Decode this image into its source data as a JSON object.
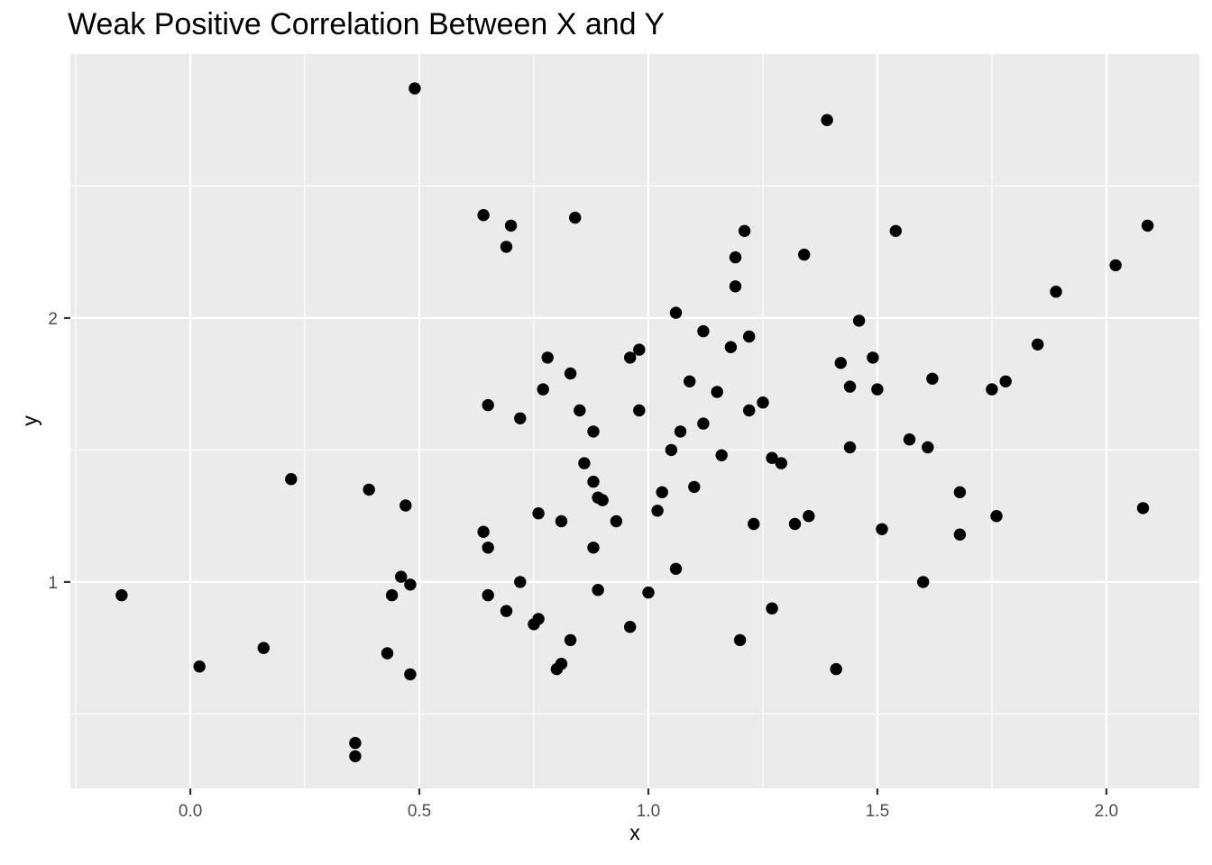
{
  "chart_data": {
    "type": "scatter",
    "title": "Weak Positive Correlation Between X and Y",
    "xlabel": "x",
    "ylabel": "y",
    "xlim": [
      -0.262,
      2.203
    ],
    "ylim": [
      0.218,
      3.0
    ],
    "grid": "on",
    "legend": "none",
    "x_ticks": [
      {
        "value": 0.0,
        "label": "0.0"
      },
      {
        "value": 0.5,
        "label": "0.5"
      },
      {
        "value": 1.0,
        "label": "1.0"
      },
      {
        "value": 1.5,
        "label": "1.5"
      },
      {
        "value": 2.0,
        "label": "2.0"
      }
    ],
    "y_ticks": [
      {
        "value": 1,
        "label": "1"
      },
      {
        "value": 2,
        "label": "2"
      }
    ],
    "x_minor": [
      -0.25,
      0.25,
      0.75,
      1.25,
      1.75
    ],
    "y_minor": [
      0.5,
      1.5,
      2.5
    ],
    "colors": {
      "panel_bg": "#EBEBEB",
      "grid": "#FFFFFF",
      "point": "#000000",
      "tick_label": "#4D4D4D",
      "tick_mark": "#333333",
      "title": "#000000"
    },
    "point_radius": 6.7,
    "points": [
      [
        0.49,
        2.87
      ],
      [
        0.64,
        2.39
      ],
      [
        0.7,
        2.35
      ],
      [
        0.69,
        2.27
      ],
      [
        0.84,
        2.38
      ],
      [
        1.39,
        2.75
      ],
      [
        1.21,
        2.33
      ],
      [
        1.19,
        2.23
      ],
      [
        1.19,
        2.12
      ],
      [
        1.34,
        2.24
      ],
      [
        1.54,
        2.33
      ],
      [
        2.09,
        2.35
      ],
      [
        2.02,
        2.2
      ],
      [
        1.89,
        2.1
      ],
      [
        0.22,
        1.39
      ],
      [
        0.78,
        1.85
      ],
      [
        0.83,
        1.79
      ],
      [
        0.96,
        1.85
      ],
      [
        0.98,
        1.88
      ],
      [
        0.77,
        1.73
      ],
      [
        0.65,
        1.67
      ],
      [
        0.72,
        1.62
      ],
      [
        0.85,
        1.65
      ],
      [
        0.98,
        1.65
      ],
      [
        0.88,
        1.57
      ],
      [
        0.86,
        1.45
      ],
      [
        0.88,
        1.38
      ],
      [
        0.89,
        1.32
      ],
      [
        0.9,
        1.31
      ],
      [
        0.39,
        1.35
      ],
      [
        0.47,
        1.29
      ],
      [
        0.76,
        1.26
      ],
      [
        0.81,
        1.23
      ],
      [
        0.93,
        1.23
      ],
      [
        0.64,
        1.19
      ],
      [
        0.65,
        1.13
      ],
      [
        0.88,
        1.13
      ],
      [
        1.06,
        2.02
      ],
      [
        1.46,
        1.99
      ],
      [
        1.12,
        1.95
      ],
      [
        1.22,
        1.93
      ],
      [
        1.18,
        1.89
      ],
      [
        1.49,
        1.85
      ],
      [
        1.42,
        1.83
      ],
      [
        1.62,
        1.77
      ],
      [
        1.09,
        1.76
      ],
      [
        1.15,
        1.72
      ],
      [
        1.44,
        1.74
      ],
      [
        1.5,
        1.73
      ],
      [
        1.25,
        1.68
      ],
      [
        1.22,
        1.65
      ],
      [
        1.12,
        1.6
      ],
      [
        1.07,
        1.57
      ],
      [
        1.57,
        1.54
      ],
      [
        1.61,
        1.51
      ],
      [
        1.05,
        1.5
      ],
      [
        1.44,
        1.51
      ],
      [
        1.16,
        1.48
      ],
      [
        1.27,
        1.47
      ],
      [
        1.29,
        1.45
      ],
      [
        1.1,
        1.36
      ],
      [
        1.03,
        1.34
      ],
      [
        1.02,
        1.27
      ],
      [
        1.35,
        1.25
      ],
      [
        1.32,
        1.22
      ],
      [
        1.23,
        1.22
      ],
      [
        1.51,
        1.2
      ],
      [
        1.85,
        1.9
      ],
      [
        1.78,
        1.76
      ],
      [
        1.75,
        1.73
      ],
      [
        1.68,
        1.34
      ],
      [
        1.76,
        1.25
      ],
      [
        1.68,
        1.18
      ],
      [
        2.08,
        1.28
      ],
      [
        -0.15,
        0.95
      ],
      [
        0.16,
        0.75
      ],
      [
        0.02,
        0.68
      ],
      [
        0.46,
        1.02
      ],
      [
        0.48,
        0.99
      ],
      [
        0.44,
        0.95
      ],
      [
        0.72,
        1.0
      ],
      [
        0.65,
        0.95
      ],
      [
        0.89,
        0.97
      ],
      [
        0.69,
        0.89
      ],
      [
        0.75,
        0.84
      ],
      [
        0.76,
        0.86
      ],
      [
        0.96,
        0.83
      ],
      [
        0.83,
        0.78
      ],
      [
        0.43,
        0.73
      ],
      [
        0.8,
        0.67
      ],
      [
        0.81,
        0.69
      ],
      [
        0.48,
        0.65
      ],
      [
        0.36,
        0.39
      ],
      [
        0.36,
        0.34
      ],
      [
        1.06,
        1.05
      ],
      [
        1.0,
        0.96
      ],
      [
        1.6,
        1.0
      ],
      [
        1.27,
        0.9
      ],
      [
        1.2,
        0.78
      ],
      [
        1.41,
        0.67
      ]
    ]
  }
}
